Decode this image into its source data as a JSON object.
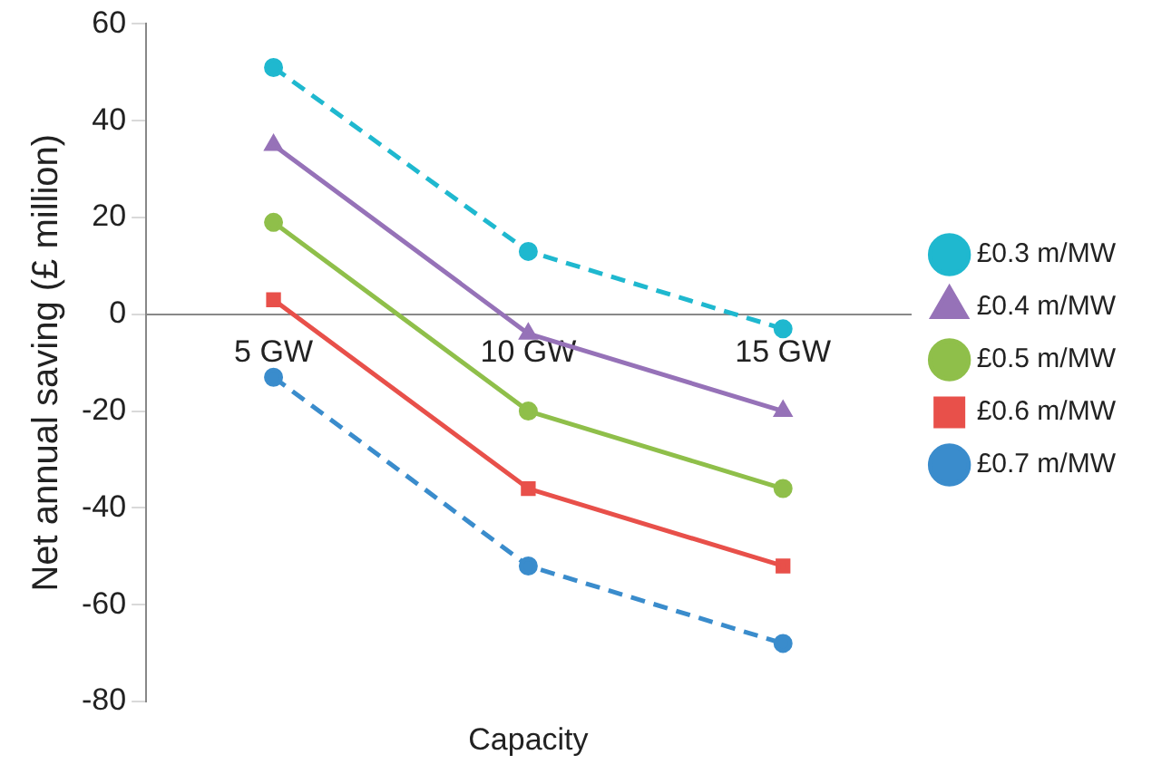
{
  "chart_data": {
    "type": "line",
    "xlabel": "Capacity",
    "ylabel": "Net annual saving (£ million)",
    "categories": [
      "5 GW",
      "10 GW",
      "15 GW"
    ],
    "ylim": [
      -80,
      60
    ],
    "yticks": [
      -80,
      -60,
      -40,
      -20,
      0,
      20,
      40,
      60
    ],
    "grid": false,
    "legend": "right",
    "series": [
      {
        "name": "£0.3 m/MW",
        "color": "#1fb8cf",
        "values": [
          51,
          13,
          -3
        ],
        "marker": "circle",
        "line_style": "dashed"
      },
      {
        "name": "£0.4 m/MW",
        "color": "#9672b8",
        "values": [
          35,
          -4,
          -20
        ],
        "marker": "triangle",
        "line_style": "solid"
      },
      {
        "name": "£0.5 m/MW",
        "color": "#8fbf4a",
        "values": [
          19,
          -20,
          -36
        ],
        "marker": "circle",
        "line_style": "solid"
      },
      {
        "name": "£0.6 m/MW",
        "color": "#e8504a",
        "values": [
          3,
          -36,
          -52
        ],
        "marker": "square",
        "line_style": "solid"
      },
      {
        "name": "£0.7 m/MW",
        "color": "#3a8ccc",
        "values": [
          -13,
          -52,
          -68
        ],
        "marker": "circle",
        "line_style": "dashed"
      }
    ]
  }
}
